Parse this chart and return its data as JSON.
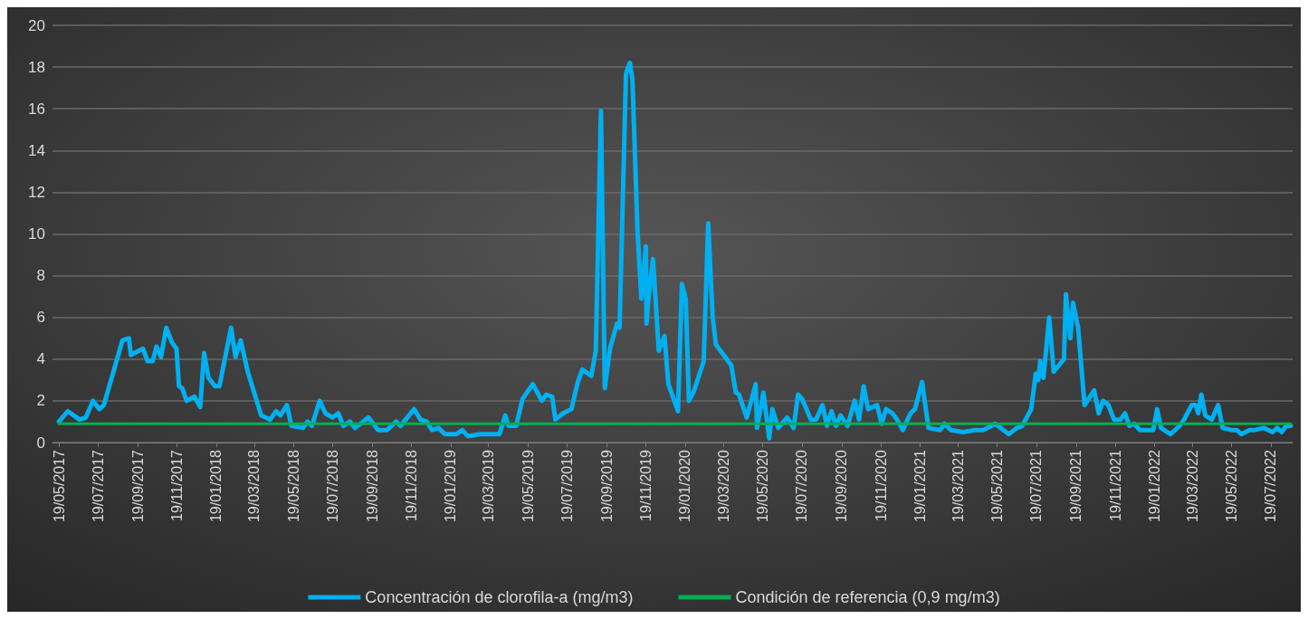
{
  "chart_data": {
    "type": "line",
    "legend": "bottom",
    "grid": "y",
    "marker": "none",
    "line_style": "solid",
    "ylim": [
      0,
      20
    ],
    "yticks": [
      0,
      2,
      4,
      6,
      8,
      10,
      12,
      14,
      16,
      18,
      20
    ],
    "xlim": [
      "2017-05-09",
      "2022-08-22"
    ],
    "xticks": [
      {
        "value": "2017-05-19",
        "label": "19/05/2017"
      },
      {
        "value": "2017-07-19",
        "label": "19/07/2017"
      },
      {
        "value": "2017-09-19",
        "label": "19/09/2017"
      },
      {
        "value": "2017-11-19",
        "label": "19/11/2017"
      },
      {
        "value": "2018-01-19",
        "label": "19/01/2018"
      },
      {
        "value": "2018-03-19",
        "label": "19/03/2018"
      },
      {
        "value": "2018-05-19",
        "label": "19/05/2018"
      },
      {
        "value": "2018-07-19",
        "label": "19/07/2018"
      },
      {
        "value": "2018-09-19",
        "label": "19/09/2018"
      },
      {
        "value": "2018-11-19",
        "label": "19/11/2018"
      },
      {
        "value": "2019-01-19",
        "label": "19/01/2019"
      },
      {
        "value": "2019-03-19",
        "label": "19/03/2019"
      },
      {
        "value": "2019-05-19",
        "label": "19/05/2019"
      },
      {
        "value": "2019-07-19",
        "label": "19/07/2019"
      },
      {
        "value": "2019-09-19",
        "label": "19/09/2019"
      },
      {
        "value": "2019-11-19",
        "label": "19/11/2019"
      },
      {
        "value": "2020-01-19",
        "label": "19/01/2020"
      },
      {
        "value": "2020-03-19",
        "label": "19/03/2020"
      },
      {
        "value": "2020-05-19",
        "label": "19/05/2020"
      },
      {
        "value": "2020-07-19",
        "label": "19/07/2020"
      },
      {
        "value": "2020-09-19",
        "label": "19/09/2020"
      },
      {
        "value": "2020-11-19",
        "label": "19/11/2020"
      },
      {
        "value": "2021-01-19",
        "label": "19/01/2021"
      },
      {
        "value": "2021-03-19",
        "label": "19/03/2021"
      },
      {
        "value": "2021-05-19",
        "label": "19/05/2021"
      },
      {
        "value": "2021-07-19",
        "label": "19/07/2021"
      },
      {
        "value": "2021-09-19",
        "label": "19/09/2021"
      },
      {
        "value": "2021-11-19",
        "label": "19/11/2021"
      },
      {
        "value": "2022-01-19",
        "label": "19/01/2022"
      },
      {
        "value": "2022-03-19",
        "label": "19/03/2022"
      },
      {
        "value": "2022-05-19",
        "label": "19/05/2022"
      },
      {
        "value": "2022-07-19",
        "label": "19/07/2022"
      }
    ],
    "series": [
      {
        "name": "Concentración de clorofila-a (mg/m3)",
        "color": "#00b0f0",
        "x": [
          "2017-05-19",
          "2017-06-02",
          "2017-06-20",
          "2017-06-30",
          "2017-07-11",
          "2017-07-21",
          "2017-07-28",
          "2017-08-26",
          "2017-09-05",
          "2017-09-08",
          "2017-09-27",
          "2017-10-04",
          "2017-10-12",
          "2017-10-18",
          "2017-10-25",
          "2017-11-02",
          "2017-11-11",
          "2017-11-18",
          "2017-11-22",
          "2017-11-27",
          "2017-12-04",
          "2017-12-16",
          "2017-12-25",
          "2017-12-31",
          "2018-01-07",
          "2018-01-17",
          "2018-01-24",
          "2018-02-11",
          "2018-02-18",
          "2018-02-26",
          "2018-03-09",
          "2018-03-30",
          "2018-04-13",
          "2018-04-22",
          "2018-04-29",
          "2018-05-09",
          "2018-05-16",
          "2018-06-03",
          "2018-06-10",
          "2018-06-17",
          "2018-06-29",
          "2018-07-08",
          "2018-07-19",
          "2018-07-28",
          "2018-08-05",
          "2018-08-15",
          "2018-08-23",
          "2018-09-13",
          "2018-09-28",
          "2018-10-12",
          "2018-10-26",
          "2018-11-02",
          "2018-11-23",
          "2018-12-03",
          "2018-12-13",
          "2018-12-21",
          "2018-12-31",
          "2019-01-10",
          "2019-01-28",
          "2019-02-06",
          "2019-02-15",
          "2019-03-06",
          "2019-04-05",
          "2019-04-14",
          "2019-04-19",
          "2019-05-01",
          "2019-05-11",
          "2019-05-27",
          "2019-06-10",
          "2019-06-17",
          "2019-06-26",
          "2019-07-01",
          "2019-07-13",
          "2019-07-26",
          "2019-08-05",
          "2019-08-12",
          "2019-08-26",
          "2019-09-02",
          "2019-09-10",
          "2019-09-16",
          "2019-09-24",
          "2019-10-05",
          "2019-10-09",
          "2019-10-19",
          "2019-10-25",
          "2019-10-29",
          "2019-11-06",
          "2019-11-12",
          "2019-11-19",
          "2019-11-20",
          "2019-11-23",
          "2019-11-30",
          "2019-12-04",
          "2019-12-09",
          "2019-12-18",
          "2019-12-24",
          "2020-01-08",
          "2020-01-14",
          "2020-01-20",
          "2020-01-25",
          "2020-02-01",
          "2020-02-17",
          "2020-02-24",
          "2020-03-02",
          "2020-03-07",
          "2020-03-31",
          "2020-04-07",
          "2020-04-12",
          "2020-04-24",
          "2020-05-08",
          "2020-05-10",
          "2020-05-20",
          "2020-05-29",
          "2020-06-03",
          "2020-06-12",
          "2020-06-26",
          "2020-07-06",
          "2020-07-13",
          "2020-07-19",
          "2020-08-02",
          "2020-08-10",
          "2020-08-20",
          "2020-08-27",
          "2020-09-03",
          "2020-09-10",
          "2020-09-17",
          "2020-09-28",
          "2020-10-09",
          "2020-10-16",
          "2020-10-23",
          "2020-10-30",
          "2020-11-13",
          "2020-11-20",
          "2020-11-27",
          "2020-12-07",
          "2020-12-14",
          "2020-12-23",
          "2021-01-04",
          "2021-01-11",
          "2021-01-22",
          "2021-02-01",
          "2021-02-19",
          "2021-02-26",
          "2021-03-08",
          "2021-03-27",
          "2021-04-14",
          "2021-04-28",
          "2021-05-16",
          "2021-06-06",
          "2021-06-19",
          "2021-06-27",
          "2021-07-11",
          "2021-07-18",
          "2021-07-22",
          "2021-07-25",
          "2021-07-30",
          "2021-08-08",
          "2021-08-15",
          "2021-08-31",
          "2021-09-03",
          "2021-09-10",
          "2021-09-14",
          "2021-09-22",
          "2021-10-02",
          "2021-10-17",
          "2021-10-24",
          "2021-10-31",
          "2021-11-08",
          "2021-11-17",
          "2021-11-27",
          "2021-12-04",
          "2021-12-11",
          "2021-12-18",
          "2021-12-27",
          "2022-01-10",
          "2022-01-17",
          "2022-01-23",
          "2022-01-29",
          "2022-02-13",
          "2022-02-27",
          "2022-03-06",
          "2022-03-18",
          "2022-03-24",
          "2022-03-28",
          "2022-04-02",
          "2022-04-08",
          "2022-04-18",
          "2022-04-28",
          "2022-05-05",
          "2022-05-19",
          "2022-05-27",
          "2022-06-03",
          "2022-06-16",
          "2022-06-24",
          "2022-07-08",
          "2022-07-22",
          "2022-07-29",
          "2022-08-05",
          "2022-08-12",
          "2022-08-19"
        ],
        "values": [
          1.0,
          1.5,
          1.1,
          1.2,
          2.0,
          1.6,
          1.8,
          4.9,
          5.0,
          4.2,
          4.5,
          3.9,
          3.9,
          4.6,
          4.1,
          5.5,
          4.8,
          4.5,
          2.7,
          2.6,
          2.0,
          2.2,
          1.7,
          4.3,
          3.1,
          2.7,
          2.7,
          5.5,
          4.1,
          4.9,
          3.4,
          1.3,
          1.1,
          1.5,
          1.3,
          1.8,
          0.8,
          0.7,
          1.0,
          0.8,
          2.0,
          1.4,
          1.2,
          1.4,
          0.8,
          1.0,
          0.7,
          1.2,
          0.6,
          0.6,
          1.0,
          0.8,
          1.6,
          1.1,
          1.0,
          0.6,
          0.7,
          0.4,
          0.4,
          0.6,
          0.3,
          0.4,
          0.4,
          1.3,
          0.8,
          0.8,
          2.1,
          2.8,
          2.0,
          2.3,
          2.2,
          1.1,
          1.4,
          1.6,
          2.9,
          3.5,
          3.2,
          4.4,
          15.9,
          2.6,
          4.5,
          5.7,
          5.5,
          17.7,
          18.2,
          17.4,
          10.1,
          6.9,
          9.4,
          5.7,
          6.9,
          8.8,
          6.9,
          4.4,
          5.1,
          2.8,
          1.5,
          7.6,
          6.9,
          2.0,
          2.4,
          3.9,
          10.5,
          6.0,
          4.7,
          3.7,
          2.4,
          2.3,
          1.2,
          2.8,
          0.7,
          2.4,
          0.2,
          1.6,
          0.7,
          1.2,
          0.7,
          2.3,
          2.1,
          1.1,
          1.1,
          1.8,
          0.8,
          1.5,
          0.8,
          1.3,
          0.8,
          2.0,
          1.1,
          2.7,
          1.6,
          1.8,
          0.9,
          1.6,
          1.4,
          1.1,
          0.6,
          1.4,
          1.6,
          2.9,
          0.7,
          0.6,
          0.9,
          0.6,
          0.5,
          0.6,
          0.6,
          0.9,
          0.4,
          0.7,
          0.8,
          1.6,
          3.3,
          3.0,
          3.9,
          3.1,
          6.0,
          3.4,
          4.0,
          7.1,
          5.0,
          6.7,
          5.5,
          1.8,
          2.5,
          1.4,
          2.0,
          1.8,
          1.1,
          1.1,
          1.4,
          0.8,
          0.9,
          0.6,
          0.6,
          0.6,
          1.6,
          0.7,
          0.4,
          0.8,
          1.1,
          1.8,
          1.8,
          1.4,
          2.3,
          1.3,
          1.1,
          1.8,
          0.7,
          0.6,
          0.6,
          0.4,
          0.6,
          0.6,
          0.7,
          0.5,
          0.7,
          0.5,
          0.8,
          0.8
        ]
      },
      {
        "name": "Condición de referencia (0,9 mg/m3)",
        "color": "#00b050",
        "x": [
          "2017-05-19",
          "2022-08-19"
        ],
        "values": [
          0.9,
          0.9
        ]
      }
    ]
  }
}
